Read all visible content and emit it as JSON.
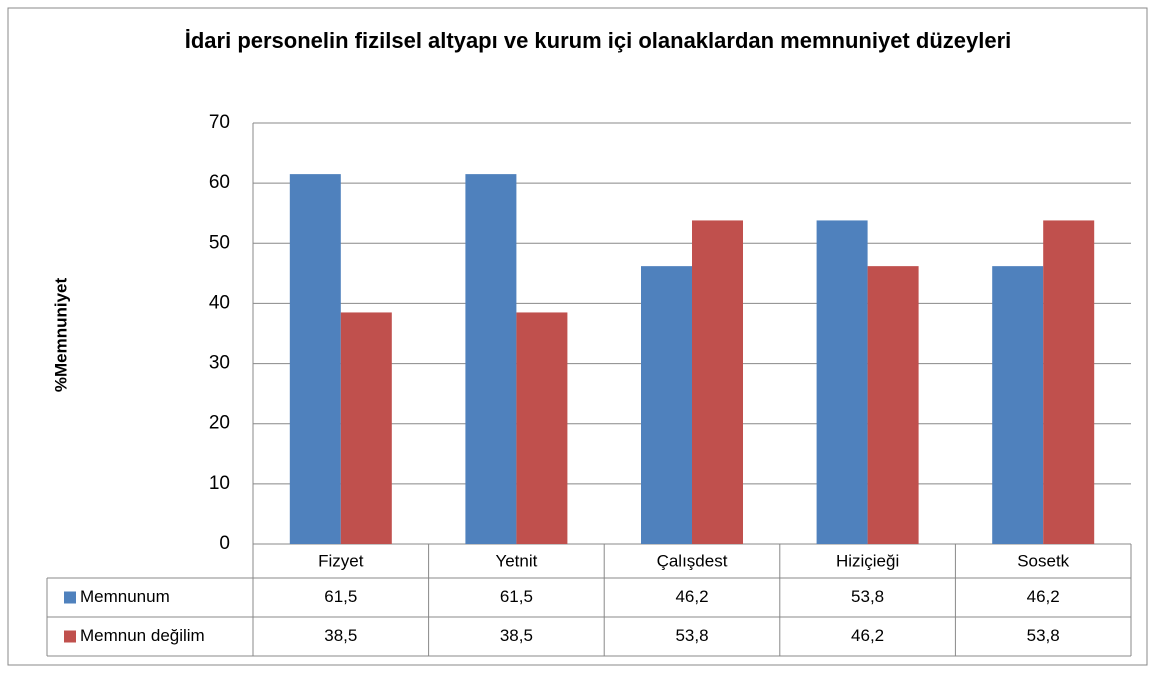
{
  "chart_data": {
    "type": "bar",
    "title": "İdari personelin fizilsel altyapı ve kurum içi olanaklardan memnuniyet düzeyleri",
    "y_label": "%Memnuniyet",
    "categories": [
      "Fizyet",
      "Yetnit",
      "Çalışdest",
      "Hiziçieği",
      "Sosetk"
    ],
    "series": [
      {
        "name": "Memnunum",
        "color": "#4f81bd",
        "values": [
          61.5,
          61.5,
          46.2,
          53.8,
          46.2
        ],
        "value_labels": [
          "61,5",
          "61,5",
          "46,2",
          "53,8",
          "46,2"
        ]
      },
      {
        "name": "Memnun değilim",
        "color": "#c0504d",
        "values": [
          38.5,
          38.5,
          53.8,
          46.2,
          53.8
        ],
        "value_labels": [
          "38,5",
          "38,5",
          "53,8",
          "46,2",
          "53,8"
        ]
      }
    ],
    "ylim": [
      0,
      70
    ],
    "yticks": [
      0,
      10,
      20,
      30,
      40,
      50,
      60,
      70
    ],
    "grid": true
  }
}
